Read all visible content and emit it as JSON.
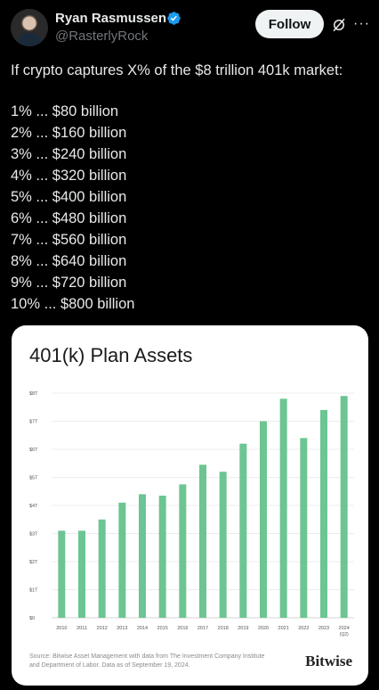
{
  "header": {
    "display_name": "Ryan Rasmussen",
    "handle": "@RasterlyRock",
    "follow_label": "Follow",
    "verified_icon": "verified-badge-icon",
    "grok_icon": "grok-icon",
    "more_icon": "more-options-icon",
    "more_glyph": "···"
  },
  "tweet": {
    "intro": "If crypto captures X% of the $8 trillion 401k market:",
    "lines": [
      "1% ... $80 billion",
      "2% ... $160 billion",
      "3% ...  $240 billion",
      "4% ... $320 billion",
      "5% ... $400 billion",
      "6% ... $480 billion",
      "7% ... $560 billion",
      "8% ... $640 billion",
      "9% ... $720 billion",
      "10% ... $800 billion"
    ]
  },
  "card": {
    "source": "Source: Bitwise Asset Management with data from The Investment Company Institute and Department of Labor. Data as of September 19, 2024.",
    "brand": "Bitwise"
  },
  "chart_data": {
    "type": "bar",
    "title": "401(k) Plan Assets",
    "xlabel": "",
    "ylabel": "",
    "ylim": [
      0,
      8
    ],
    "y_ticks": [
      "$0",
      "$1T",
      "$2T",
      "$3T",
      "$4T",
      "$5T",
      "$6T",
      "$7T",
      "$8T"
    ],
    "categories": [
      "2010",
      "2011",
      "2012",
      "2013",
      "2014",
      "2015",
      "2016",
      "2017",
      "2018",
      "2019",
      "2020",
      "2021",
      "2022",
      "2023",
      "2024"
    ],
    "category_sublabels": [
      "",
      "",
      "",
      "",
      "",
      "",
      "",
      "",
      "",
      "",
      "",
      "",
      "",
      "",
      "(Q2)"
    ],
    "values": [
      3.1,
      3.1,
      3.5,
      4.1,
      4.4,
      4.35,
      4.75,
      5.45,
      5.2,
      6.2,
      7.0,
      7.8,
      6.4,
      7.4,
      7.9
    ],
    "bar_color": "#6cc592",
    "grid": true
  }
}
